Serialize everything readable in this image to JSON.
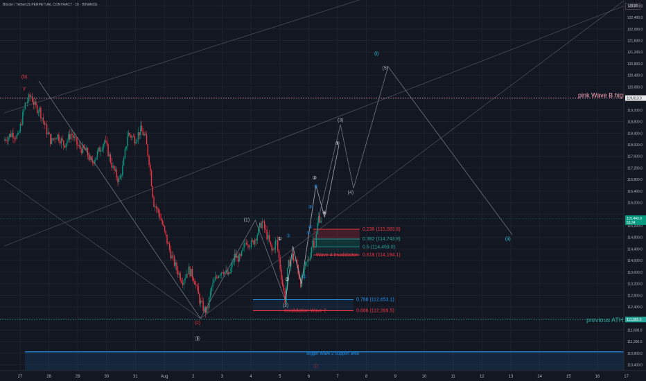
{
  "header": {
    "title": "Bitcoin / TetherUS PERPETUAL CONTRACT · 1h · BINANCE",
    "currency": "USDT"
  },
  "chart_data": {
    "type": "candlestick",
    "x_axis": {
      "ticks": [
        "27",
        "28",
        "29",
        "30",
        "31",
        "Aug",
        "2",
        "3",
        "4",
        "5",
        "6",
        "7",
        "8",
        "9",
        "10",
        "11",
        "12",
        "13",
        "14",
        "15",
        "16",
        "17"
      ]
    },
    "y_axis": {
      "ticks": [
        110400,
        110800,
        111200,
        111600,
        112000,
        112400,
        112800,
        113200,
        113600,
        114000,
        114400,
        114800,
        115200,
        115600,
        116000,
        116400,
        116800,
        117200,
        117600,
        118000,
        118400,
        118800,
        119200,
        119600,
        120000,
        120400,
        120800,
        121200,
        121600,
        122000,
        122400,
        122800
      ],
      "range": [
        110200,
        123000
      ]
    },
    "candle_colors": {
      "up": "#089981",
      "down": "#f23645"
    },
    "price_path": [
      {
        "x": 0.0,
        "y": 118150
      },
      {
        "x": 0.3,
        "y": 118400
      },
      {
        "x": 0.5,
        "y": 118250
      },
      {
        "x": 0.75,
        "y": 119400
      },
      {
        "x": 0.95,
        "y": 119700
      },
      {
        "x": 1.1,
        "y": 119300
      },
      {
        "x": 1.25,
        "y": 119200
      },
      {
        "x": 1.45,
        "y": 118600
      },
      {
        "x": 1.65,
        "y": 118100
      },
      {
        "x": 1.85,
        "y": 118350
      },
      {
        "x": 2.1,
        "y": 118000
      },
      {
        "x": 2.35,
        "y": 118400
      },
      {
        "x": 2.6,
        "y": 117900
      },
      {
        "x": 2.85,
        "y": 117800
      },
      {
        "x": 3.05,
        "y": 117350
      },
      {
        "x": 3.25,
        "y": 117700
      },
      {
        "x": 3.5,
        "y": 118150
      },
      {
        "x": 3.8,
        "y": 117150
      },
      {
        "x": 4.0,
        "y": 116750
      },
      {
        "x": 4.15,
        "y": 117300
      },
      {
        "x": 4.3,
        "y": 118400
      },
      {
        "x": 4.55,
        "y": 118200
      },
      {
        "x": 4.75,
        "y": 118500
      },
      {
        "x": 4.9,
        "y": 118300
      },
      {
        "x": 5.05,
        "y": 117400
      },
      {
        "x": 5.2,
        "y": 116000
      },
      {
        "x": 5.4,
        "y": 115600
      },
      {
        "x": 5.6,
        "y": 114900
      },
      {
        "x": 5.8,
        "y": 114200
      },
      {
        "x": 6.0,
        "y": 113700
      },
      {
        "x": 6.2,
        "y": 113300
      },
      {
        "x": 6.4,
        "y": 113700
      },
      {
        "x": 6.6,
        "y": 113400
      },
      {
        "x": 6.8,
        "y": 112600
      },
      {
        "x": 6.95,
        "y": 112300
      },
      {
        "x": 7.05,
        "y": 112250
      },
      {
        "x": 7.2,
        "y": 113050
      },
      {
        "x": 7.4,
        "y": 113500
      },
      {
        "x": 7.6,
        "y": 113700
      },
      {
        "x": 7.8,
        "y": 113450
      },
      {
        "x": 8.0,
        "y": 114150
      },
      {
        "x": 8.2,
        "y": 114050
      },
      {
        "x": 8.4,
        "y": 114700
      },
      {
        "x": 8.6,
        "y": 114550
      },
      {
        "x": 8.8,
        "y": 114950
      },
      {
        "x": 8.95,
        "y": 115350
      },
      {
        "x": 9.15,
        "y": 114800
      },
      {
        "x": 9.3,
        "y": 114300
      },
      {
        "x": 9.45,
        "y": 114700
      },
      {
        "x": 9.65,
        "y": 113300
      },
      {
        "x": 9.75,
        "y": 112650
      },
      {
        "x": 9.85,
        "y": 113800
      },
      {
        "x": 10.0,
        "y": 114150
      },
      {
        "x": 10.15,
        "y": 113900
      },
      {
        "x": 10.3,
        "y": 113200
      },
      {
        "x": 10.45,
        "y": 113800
      },
      {
        "x": 10.6,
        "y": 114100
      },
      {
        "x": 10.7,
        "y": 114700
      },
      {
        "x": 10.8,
        "y": 114550
      },
      {
        "x": 10.9,
        "y": 115500
      },
      {
        "x": 10.97,
        "y": 115450
      }
    ],
    "annotations": [
      {
        "text": "(b)",
        "x": 0.7,
        "y": 120300,
        "color": "#f23645"
      },
      {
        "text": "y",
        "x": 0.7,
        "y": 119900,
        "color": "#f23645"
      },
      {
        "text": "(c)",
        "x": 6.7,
        "y": 111800,
        "color": "#f23645"
      },
      {
        "text": "ⓑ",
        "x": 6.7,
        "y": 111250,
        "color": "#ffffff"
      },
      {
        "text": "(i)",
        "x": 12.9,
        "y": 121100,
        "color": "#26c6da"
      },
      {
        "text": "(ii)",
        "x": 17.45,
        "y": 114700,
        "color": "#26c6da"
      },
      {
        "text": "(1)",
        "x": 8.4,
        "y": 115350,
        "color": "#b2b5be"
      },
      {
        "text": "(2)",
        "x": 9.75,
        "y": 112400,
        "color": "#b2b5be"
      },
      {
        "text": "(3)",
        "x": 11.65,
        "y": 118800,
        "color": "#b2b5be"
      },
      {
        "text": "(4)",
        "x": 12.0,
        "y": 116300,
        "color": "#b2b5be"
      },
      {
        "text": "(5)",
        "x": 13.2,
        "y": 120600,
        "color": "#b2b5be"
      },
      {
        "text": "①",
        "x": 9.55,
        "y": 114700,
        "color": "#ffffff"
      },
      {
        "text": "②",
        "x": 9.8,
        "y": 113300,
        "color": "#ffffff"
      },
      {
        "text": "③",
        "x": 10.75,
        "y": 116800,
        "color": "#ffffff"
      },
      {
        "text": "④",
        "x": 11.1,
        "y": 115600,
        "color": "#ffffff"
      },
      {
        "text": "⑤",
        "x": 11.55,
        "y": 118000,
        "color": "#ffffff"
      },
      {
        "text": "①",
        "x": 9.85,
        "y": 114800,
        "color": "#2196f3"
      },
      {
        "text": "②",
        "x": 10.4,
        "y": 113400,
        "color": "#2196f3"
      },
      {
        "text": "③",
        "x": 10.6,
        "y": 115800,
        "color": "#2196f3"
      },
      {
        "text": "④",
        "x": 10.55,
        "y": 114900,
        "color": "#2196f3"
      },
      {
        "text": "⑤",
        "x": 10.8,
        "y": 116500,
        "color": "#2196f3"
      },
      {
        "text": "④",
        "x": 10.6,
        "y": 115100,
        "color": "#2196f3"
      },
      {
        "text": "ⓘ",
        "x": 10.8,
        "y": 110300,
        "color": "#f23645"
      }
    ],
    "wave_paths": [
      {
        "color": "#b2b5be",
        "points": [
          {
            "x": 9.75,
            "y": 112650
          },
          {
            "x": 10.0,
            "y": 114500
          },
          {
            "x": 10.3,
            "y": 113200
          },
          {
            "x": 10.8,
            "y": 116600
          },
          {
            "x": 11.1,
            "y": 115500
          },
          {
            "x": 11.6,
            "y": 118000
          }
        ]
      },
      {
        "color": "#787b86",
        "points": [
          {
            "x": 10.9,
            "y": 115500
          },
          {
            "x": 11.65,
            "y": 118700
          },
          {
            "x": 12.1,
            "y": 116500
          },
          {
            "x": 13.3,
            "y": 120700
          },
          {
            "x": 17.6,
            "y": 114900
          }
        ]
      },
      {
        "color": "#787b86",
        "points": [
          {
            "x": 6.8,
            "y": 112000
          },
          {
            "x": 8.7,
            "y": 115400
          },
          {
            "x": 9.75,
            "y": 112600
          }
        ]
      },
      {
        "color": "#787b86",
        "points": [
          {
            "x": 1.2,
            "y": 120200
          },
          {
            "x": 6.8,
            "y": 112000
          }
        ]
      }
    ],
    "trend_lines": [
      {
        "color": "#787b86",
        "from": {
          "x": 0.0,
          "y": 116800
        },
        "to": {
          "x": 6.8,
          "y": 112000
        }
      },
      {
        "color": "#787b86",
        "from": {
          "x": 6.8,
          "y": 112000
        },
        "to": {
          "x": 21.5,
          "y": 123000
        }
      },
      {
        "color": "#787b86",
        "from": {
          "x": 0.0,
          "y": 114500
        },
        "to": {
          "x": 22.0,
          "y": 123000
        }
      },
      {
        "color": "#787b86",
        "from": {
          "x": 0.0,
          "y": 119100
        },
        "to": {
          "x": 12.3,
          "y": 123000
        }
      }
    ],
    "horizontal_levels": [
      {
        "label": "pink Wave B high",
        "value": 119613.0,
        "badge": "119,613.0",
        "color": "#f7a6b8",
        "style": "dotted"
      },
      {
        "label": "previous ATH",
        "value": 111965,
        "badge": "111,965.0",
        "color": "#26a69a",
        "style": "dotted"
      }
    ],
    "fib_levels": [
      {
        "label": "0.236 (115,083.8)",
        "value": 115083.8,
        "color": "#f23645"
      },
      {
        "label": "0.382 (114,743.8)",
        "value": 114743.8,
        "color": "#26a69a"
      },
      {
        "label": "0.5 (114,469.0)",
        "value": 114469.0,
        "color": "#26a69a"
      },
      {
        "label": "0.618 (114,194.1)",
        "value": 114194.1,
        "color": "#f23645"
      },
      {
        "label": "0.786 (112,653.1)",
        "value": 112653.1,
        "color": "#2196f3"
      },
      {
        "label": "0.886 (112,269.5)",
        "value": 112269.5,
        "color": "#f23645"
      }
    ],
    "zones": [
      {
        "label": "Wave 4 Invalidation",
        "value": 114194.1,
        "color": "#f23645"
      },
      {
        "label": "Invalidation Wave 2",
        "value": 112269.5,
        "color": "#f23645"
      },
      {
        "label": "Bigger Wave 2 Support area",
        "low": 110200,
        "high": 110850,
        "color": "#2196f3"
      }
    ],
    "last_price": {
      "label": "115,443.9",
      "countdown": "56:34",
      "value": 115443.9
    }
  }
}
